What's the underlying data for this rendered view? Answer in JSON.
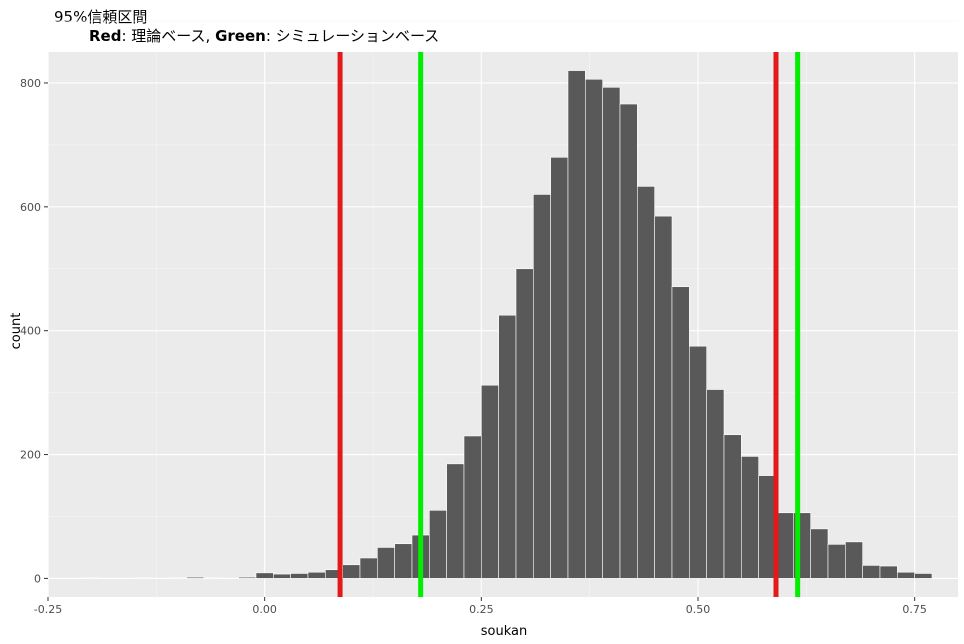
{
  "chart_data": {
    "type": "bar",
    "title": "95%信頼区間",
    "subtitle_parts": [
      {
        "text": "Red",
        "bold": true
      },
      {
        "text": ": 理論ベース, ",
        "bold": false
      },
      {
        "text": "Green",
        "bold": true
      },
      {
        "text": ": シミュレーションベース",
        "bold": false
      }
    ],
    "xlabel": "soukan",
    "ylabel": "count",
    "xlim": [
      -0.25,
      0.8
    ],
    "ylim": [
      -30,
      850
    ],
    "xticks": [
      -0.25,
      0.0,
      0.25,
      0.5,
      0.75
    ],
    "xtick_labels": [
      "-0.25",
      "0.00",
      "0.25",
      "0.50",
      "0.75"
    ],
    "yticks": [
      0,
      200,
      400,
      600,
      800
    ],
    "ytick_labels": [
      "0",
      "200",
      "400",
      "600",
      "800"
    ],
    "grid": true,
    "bin_width": 0.02,
    "bin_centers": [
      -0.2,
      -0.18,
      -0.16,
      -0.14,
      -0.12,
      -0.1,
      -0.08,
      -0.06,
      -0.04,
      -0.02,
      0.0,
      0.02,
      0.04,
      0.06,
      0.08,
      0.1,
      0.12,
      0.14,
      0.16,
      0.18,
      0.2,
      0.22,
      0.24,
      0.26,
      0.28,
      0.3,
      0.32,
      0.34,
      0.36,
      0.38,
      0.4,
      0.42,
      0.44,
      0.46,
      0.48,
      0.5,
      0.52,
      0.54,
      0.56,
      0.58,
      0.6,
      0.62,
      0.64,
      0.66,
      0.68,
      0.7,
      0.72,
      0.74,
      0.76
    ],
    "counts": [
      1,
      0,
      0,
      1,
      0,
      1,
      2,
      1,
      0,
      2,
      9,
      7,
      8,
      10,
      14,
      22,
      33,
      50,
      56,
      70,
      110,
      185,
      230,
      312,
      425,
      500,
      620,
      680,
      820,
      806,
      793,
      766,
      633,
      585,
      471,
      375,
      305,
      232,
      197,
      166,
      106,
      106,
      80,
      55,
      59,
      21,
      20,
      10,
      8
    ],
    "bar_fill": "#595959",
    "bar_outline": "#ffffff",
    "panel_background": "#ebebeb",
    "vlines": [
      {
        "x": 0.087,
        "color": "#e31a1c"
      },
      {
        "x": 0.59,
        "color": "#e31a1c"
      },
      {
        "x": 0.18,
        "color": "#00ee00"
      },
      {
        "x": 0.615,
        "color": "#00ee00"
      }
    ]
  }
}
